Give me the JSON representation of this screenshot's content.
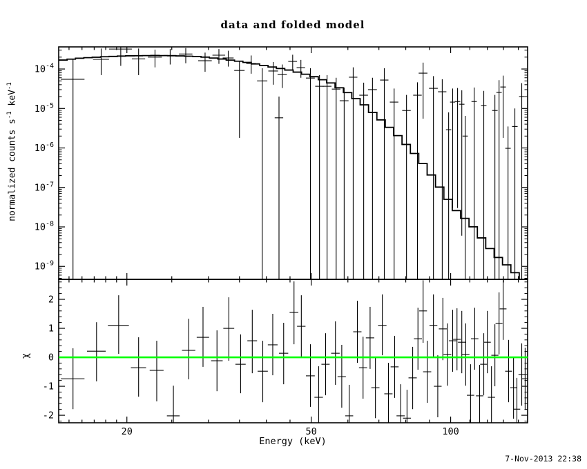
{
  "title": "data and folded model",
  "timestamp": "7-Nov-2013 22:38",
  "colors": {
    "foreground": "#000000",
    "model_line": "#000000",
    "zero_line": "#00ff00",
    "background": "#ffffff"
  },
  "axes": {
    "xlabel": "Energy (keV)",
    "ylabel_top_parts": {
      "t1": "normalized counts s",
      "s1": "-1",
      "t2": " keV",
      "s2": "-1"
    },
    "ylabel_bottom": "χ",
    "x_ticks_major": [
      20,
      50,
      100
    ],
    "x_tick_labels": [
      "20",
      "50",
      "100"
    ],
    "x_ticks_minor": [
      15,
      16,
      17,
      18,
      19,
      25,
      30,
      35,
      40,
      45,
      60,
      70,
      80,
      90,
      110,
      120,
      130,
      140
    ],
    "x_range_kev": [
      14.25,
      146.6
    ],
    "top_y_ticks_exp": [
      -4,
      -5,
      -6,
      -7,
      -8,
      -9
    ],
    "top_y_range": [
      4.7e-10,
      0.000363
    ],
    "bottom_y_ticks": [
      2,
      1,
      0,
      -1,
      -2
    ],
    "bottom_y_tick_labels": [
      "2",
      "1",
      "0",
      "-1",
      "-2"
    ],
    "bottom_y_range": [
      -2.26,
      2.69
    ],
    "bottom_y_minor_step": 0.2
  },
  "chart_data": [
    {
      "type": "line",
      "subtype": "histogram-model-with-errorbar-data",
      "title": "data and folded model",
      "xlabel": "Energy (keV)",
      "ylabel": "normalized counts s^-1 keV^-1",
      "xscale": "log",
      "yscale": "log",
      "xlim": [
        14.25,
        146.6
      ],
      "ylim": [
        4.7e-10,
        0.000363
      ],
      "grid": false,
      "legend": false,
      "model_curve_note": "folded model histogram anchors, rate in counts/s/keV",
      "model_E_keV": [
        14.3,
        16,
        18,
        20,
        23,
        26,
        29,
        32,
        36,
        40,
        45,
        50,
        55,
        60,
        65,
        69,
        75,
        80,
        83,
        88,
        93,
        98,
        104,
        110,
        117,
        124,
        131,
        136,
        143,
        146.6
      ],
      "model_rate": [
        0.000165,
        0.00019,
        0.000205,
        0.000215,
        0.00022,
        0.000215,
        0.000205,
        0.00018,
        0.00015,
        0.00012,
        9.3e-05,
        6.8e-05,
        4.5e-05,
        2.5e-05,
        1.26e-05,
        6.7e-06,
        2.8e-06,
        1.26e-06,
        8e-07,
        3.5e-07,
        1.4e-07,
        5.6e-08,
        2.2e-08,
        1.3e-08,
        5e-09,
        2.1e-09,
        1.2e-09,
        8e-10,
        4.5e-10,
        3.5e-10
      ],
      "point_format": "[energy_keV, half_width_keV, rate, err_low_rate, err_high_rate] ; err_low_rate 5e-10 means bar extends below plotted range",
      "points": [
        [
          15.3,
          0.9,
          5.5e-05,
          5e-10,
          0.00018
        ],
        [
          17.6,
          0.7,
          0.000176,
          7e-05,
          0.00033
        ],
        [
          19.4,
          1.1,
          0.00032,
          0.00012,
          0.00036
        ],
        [
          21.2,
          0.7,
          0.00018,
          7e-05,
          0.00033
        ],
        [
          23.0,
          0.8,
          0.0002,
          0.00011,
          0.00031
        ],
        [
          24.8,
          0.8,
          0.00022,
          0.00013,
          0.00032
        ],
        [
          26.8,
          0.9,
          0.00024,
          0.00014,
          0.00034
        ],
        [
          29.5,
          1.0,
          0.000162,
          8.5e-05,
          0.00026
        ],
        [
          31.6,
          1.0,
          0.000224,
          0.000135,
          0.00032
        ],
        [
          33.1,
          0.9,
          0.00019,
          0.000115,
          0.00029
        ],
        [
          35.0,
          0.9,
          9.2e-05,
          1.8e-06,
          0.00016
        ],
        [
          37.1,
          0.9,
          0.000138,
          7.6e-05,
          0.00022
        ],
        [
          39.2,
          1.0,
          5e-05,
          5e-10,
          0.000105
        ],
        [
          41.4,
          1.0,
          8.9e-05,
          4e-05,
          0.00015
        ],
        [
          42.6,
          0.9,
          5.8e-06,
          5e-10,
          2e-05
        ],
        [
          43.3,
          1.0,
          7.3e-05,
          3.3e-05,
          0.00013
        ],
        [
          45.6,
          1.0,
          0.000156,
          9.5e-05,
          0.00023
        ],
        [
          47.5,
          1.0,
          0.000108,
          6e-05,
          0.00017
        ],
        [
          49.8,
          1.1,
          5.9e-05,
          5e-10,
          0.000105
        ],
        [
          52.1,
          1.1,
          3.65e-05,
          5e-10,
          7e-05
        ],
        [
          54.1,
          1.2,
          3.65e-05,
          5e-10,
          7e-05
        ],
        [
          56.6,
          1.2,
          3.1e-05,
          5e-10,
          6e-05
        ],
        [
          58.9,
          1.3,
          1.57e-05,
          5e-10,
          3.4e-05
        ],
        [
          61.6,
          1.3,
          6.2e-05,
          5e-10,
          0.00011
        ],
        [
          64.9,
          1.4,
          2.17e-05,
          5e-10,
          4.5e-05
        ],
        [
          67.8,
          1.5,
          3e-05,
          5e-10,
          6e-05
        ],
        [
          71.9,
          1.5,
          5.25e-05,
          5e-10,
          0.000105
        ],
        [
          75.5,
          1.6,
          1.45e-05,
          5e-10,
          3.2e-05
        ],
        [
          80.3,
          1.7,
          8.9e-06,
          5e-10,
          2.2e-05
        ],
        [
          84.8,
          1.8,
          2.17e-05,
          5e-10,
          4.6e-05
        ],
        [
          87.2,
          1.9,
          7.85e-05,
          5.5e-06,
          0.000145
        ],
        [
          91.8,
          2.0,
          3.24e-05,
          5e-10,
          6.6e-05
        ],
        [
          95.9,
          2.0,
          2.65e-05,
          5e-10,
          5.5e-05
        ],
        [
          99.0,
          1.3,
          2.9e-06,
          5e-10,
          8e-06
        ],
        [
          101.0,
          1.3,
          1.45e-05,
          3e-08,
          3.2e-05
        ],
        [
          103.5,
          1.4,
          1.5e-05,
          3e-08,
          3.3e-05
        ],
        [
          105.7,
          1.4,
          1.28e-05,
          6e-09,
          2.9e-05
        ],
        [
          107.5,
          1.4,
          2e-06,
          5e-10,
          6.5e-06
        ],
        [
          112.4,
          1.5,
          1.5e-05,
          5e-10,
          3.4e-05
        ],
        [
          117.9,
          1.6,
          1.18e-05,
          5e-10,
          2.8e-05
        ],
        [
          124.6,
          1.7,
          8.9e-06,
          5e-10,
          2.2e-05
        ],
        [
          127.2,
          1.7,
          2.55e-05,
          5e-10,
          5.2e-05
        ],
        [
          129.8,
          1.8,
          3.5e-05,
          1.8e-06,
          6.8e-05
        ],
        [
          133.0,
          1.8,
          9.8e-07,
          5e-10,
          3.5e-06
        ],
        [
          137.6,
          1.9,
          3.5e-06,
          5e-10,
          1e-05
        ],
        [
          142.4,
          1.9,
          2e-05,
          5e-10,
          4.4e-05
        ]
      ]
    },
    {
      "type": "scatter",
      "subtype": "residuals-errorbar",
      "title": "",
      "xlabel": "Energy (keV)",
      "ylabel": "chi",
      "xscale": "log",
      "yscale": "linear",
      "xlim": [
        14.25,
        146.6
      ],
      "ylim": [
        -2.26,
        2.69
      ],
      "zero_line": {
        "y": 0,
        "color": "#00ff00"
      },
      "point_format": "[energy_keV, half_width_keV, chi, err_low_chi, err_high_chi]",
      "points": [
        [
          15.3,
          0.9,
          -0.74,
          -1.79,
          0.31
        ],
        [
          17.2,
          0.8,
          0.21,
          -0.83,
          1.21
        ],
        [
          19.2,
          1.0,
          1.1,
          0.12,
          2.14
        ],
        [
          21.2,
          0.8,
          -0.36,
          -1.36,
          0.69
        ],
        [
          23.2,
          0.8,
          -0.45,
          -1.52,
          0.57
        ],
        [
          25.2,
          0.8,
          -2.02,
          -2.26,
          -0.98
        ],
        [
          27.2,
          0.9,
          0.24,
          -0.76,
          1.33
        ],
        [
          29.2,
          0.9,
          0.69,
          -0.33,
          1.74
        ],
        [
          31.3,
          0.9,
          -0.12,
          -1.17,
          0.93
        ],
        [
          33.2,
          0.9,
          1.0,
          -0.12,
          2.07
        ],
        [
          35.2,
          0.9,
          -0.24,
          -1.24,
          0.79
        ],
        [
          37.3,
          0.9,
          0.57,
          -0.55,
          1.64
        ],
        [
          39.3,
          1.0,
          -0.48,
          -1.55,
          0.57
        ],
        [
          41.3,
          1.0,
          0.43,
          -0.62,
          1.5
        ],
        [
          43.6,
          1.0,
          0.14,
          -0.93,
          1.19
        ],
        [
          45.9,
          1.0,
          1.55,
          0.45,
          2.62
        ],
        [
          47.6,
          1.0,
          1.07,
          0.0,
          2.14
        ],
        [
          49.8,
          1.1,
          -0.64,
          -1.71,
          0.45
        ],
        [
          51.9,
          1.1,
          -1.38,
          -2.26,
          -0.31
        ],
        [
          53.7,
          1.1,
          -0.24,
          -1.31,
          0.83
        ],
        [
          56.4,
          1.2,
          0.14,
          -0.95,
          1.24
        ],
        [
          58.2,
          1.2,
          -0.67,
          -1.74,
          0.43
        ],
        [
          60.4,
          1.2,
          -2.02,
          -2.26,
          -0.95
        ],
        [
          62.9,
          1.3,
          0.88,
          -0.19,
          1.95
        ],
        [
          64.7,
          1.3,
          -0.36,
          -1.43,
          0.71
        ],
        [
          67.0,
          1.4,
          0.67,
          -0.4,
          1.74
        ],
        [
          68.8,
          1.4,
          -1.05,
          -2.1,
          0.0
        ],
        [
          71.2,
          1.5,
          1.1,
          0.07,
          2.17
        ],
        [
          73.4,
          1.5,
          -1.26,
          -2.26,
          -0.19
        ],
        [
          75.7,
          1.5,
          -0.33,
          -1.4,
          0.74
        ],
        [
          78.0,
          1.6,
          -2.02,
          -2.26,
          -0.93
        ],
        [
          80.5,
          1.6,
          -2.1,
          -2.26,
          -1.12
        ],
        [
          82.8,
          1.7,
          -0.71,
          -1.79,
          0.36
        ],
        [
          85.0,
          1.7,
          0.64,
          -0.43,
          1.71
        ],
        [
          87.2,
          1.7,
          1.6,
          0.5,
          2.66
        ],
        [
          89.0,
          1.8,
          -0.5,
          -1.57,
          0.57
        ],
        [
          91.8,
          1.8,
          1.1,
          0.02,
          2.17
        ],
        [
          93.8,
          1.8,
          -1.0,
          -2.07,
          0.07
        ],
        [
          96.2,
          1.9,
          0.98,
          -0.1,
          2.05
        ],
        [
          98.4,
          1.9,
          0.1,
          -0.98,
          1.17
        ],
        [
          101.0,
          1.9,
          0.57,
          -0.5,
          1.64
        ],
        [
          103.2,
          2.0,
          0.62,
          -0.45,
          1.69
        ],
        [
          105.7,
          2.0,
          0.52,
          -0.55,
          1.6
        ],
        [
          107.8,
          2.0,
          0.1,
          -0.98,
          1.17
        ],
        [
          110.4,
          2.0,
          -1.31,
          -2.26,
          -0.24
        ],
        [
          112.7,
          2.1,
          0.64,
          -0.43,
          1.71
        ],
        [
          115.5,
          2.1,
          -1.33,
          -2.26,
          -0.26
        ],
        [
          117.9,
          2.1,
          -0.24,
          -1.31,
          0.83
        ],
        [
          120.0,
          2.1,
          0.52,
          -0.55,
          1.6
        ],
        [
          122.5,
          2.2,
          -1.38,
          -2.26,
          -0.31
        ],
        [
          124.6,
          2.2,
          0.07,
          -1.0,
          1.14
        ],
        [
          127.2,
          2.2,
          1.17,
          0.1,
          2.24
        ],
        [
          129.8,
          2.2,
          1.67,
          0.6,
          2.66
        ],
        [
          133.4,
          2.3,
          -0.48,
          -1.55,
          0.6
        ],
        [
          136.7,
          2.3,
          -1.05,
          -2.12,
          0.02
        ],
        [
          139.0,
          2.3,
          -1.79,
          -2.26,
          -0.71
        ],
        [
          142.4,
          2.3,
          -0.6,
          -1.67,
          0.48
        ],
        [
          144.8,
          2.3,
          -0.74,
          -1.81,
          0.33
        ]
      ]
    }
  ]
}
